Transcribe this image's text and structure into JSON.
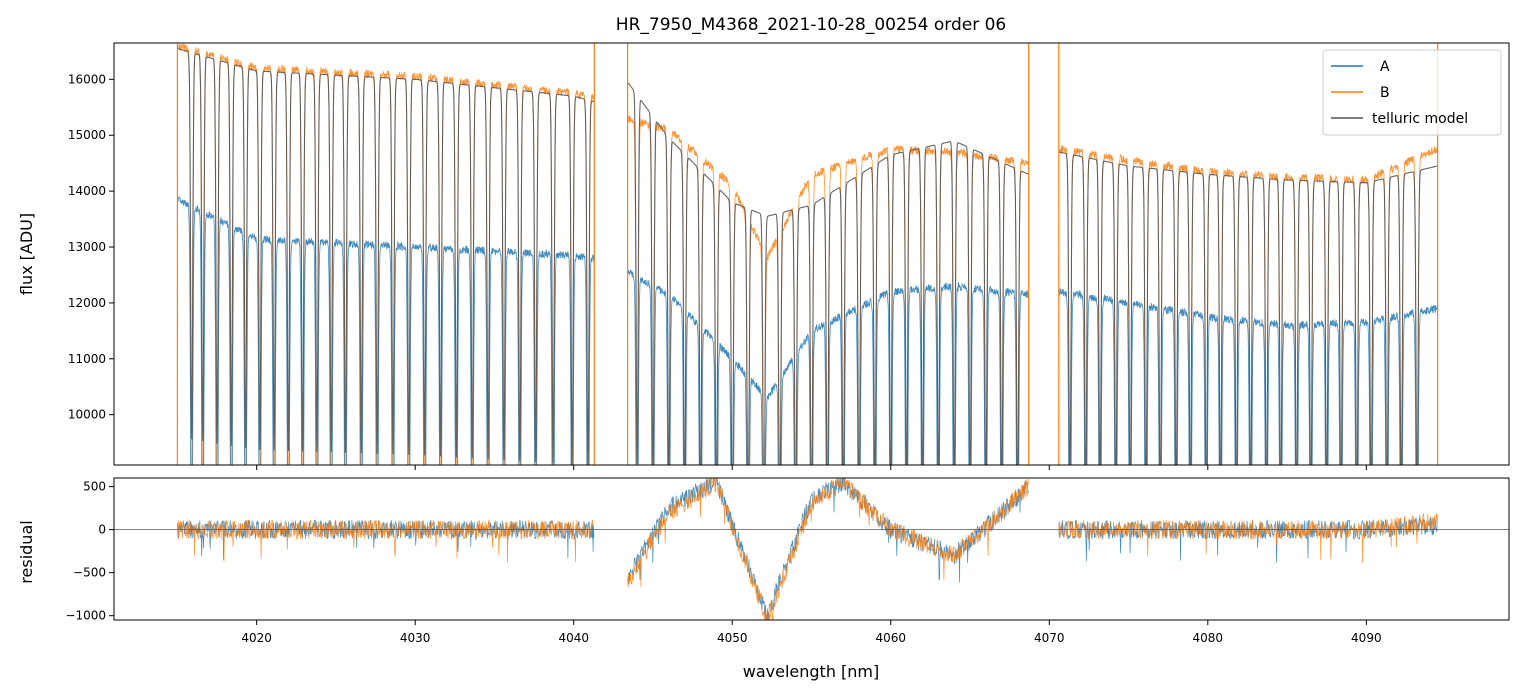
{
  "chart_data": [
    {
      "type": "line",
      "title": "HR_7950_M4368_2021-10-28_00254  order 06",
      "xlabel": "",
      "ylabel": "flux [ADU]",
      "xlim": [
        4011,
        4099
      ],
      "ylim": [
        9100,
        16650
      ],
      "x_ticks": [
        4020,
        4030,
        4040,
        4050,
        4060,
        4070,
        4080,
        4090
      ],
      "y_ticks": [
        10000,
        11000,
        12000,
        13000,
        14000,
        15000,
        16000
      ],
      "legend": "top-right",
      "x_segments": [
        [
          4015.0,
          4041.3
        ],
        [
          4043.4,
          4068.7
        ],
        [
          4070.6,
          4094.5
        ]
      ],
      "series": [
        {
          "name": "A",
          "color": "#1f77b4",
          "x": [
            4015.0,
            4020,
            4030,
            4040,
            4041.3,
            4043.4,
            4046,
            4050,
            4052.2,
            4055,
            4060,
            4064,
            4068.7,
            4070.6,
            4075,
            4080,
            4085,
            4090,
            4094.5
          ],
          "y": [
            13850,
            13150,
            13000,
            12850,
            12800,
            12550,
            12150,
            11000,
            10300,
            11500,
            12200,
            12300,
            12150,
            12200,
            12000,
            11750,
            11600,
            11650,
            11900
          ]
        },
        {
          "name": "B",
          "color": "#ff7f0e",
          "x": [
            4015.0,
            4020,
            4030,
            4040,
            4041.3,
            4043.4,
            4046,
            4050,
            4052.2,
            4055,
            4060,
            4064,
            4068.7,
            4070.6,
            4075,
            4080,
            4085,
            4090,
            4094.5
          ],
          "y": [
            16600,
            16200,
            16050,
            15750,
            15650,
            15300,
            15100,
            14100,
            12800,
            14300,
            14750,
            14700,
            14500,
            14750,
            14550,
            14350,
            14250,
            14200,
            14750
          ]
        },
        {
          "name": "telluric model",
          "color": "#555555",
          "x": [
            4015.0,
            4020,
            4030,
            4040,
            4041.3,
            4043.4,
            4046,
            4050,
            4052.2,
            4055,
            4060,
            4064,
            4068.7,
            4070.6,
            4075,
            4080,
            4085,
            4090,
            4094.5
          ],
          "y": [
            16550,
            16150,
            16000,
            15700,
            15600,
            15950,
            14950,
            13800,
            13550,
            13750,
            14650,
            14900,
            14300,
            14700,
            14450,
            14300,
            14200,
            14150,
            14450
          ]
        }
      ],
      "telluric_lines": [
        4015.9,
        4016.6,
        4017.5,
        4018.4,
        4019.3,
        4020.2,
        4021.1,
        4022.0,
        4022.9,
        4023.8,
        4024.7,
        4025.6,
        4026.6,
        4027.6,
        4028.6,
        4029.6,
        4030.6,
        4031.6,
        4032.6,
        4033.6,
        4034.6,
        4035.6,
        4036.6,
        4037.6,
        4038.7,
        4039.9,
        4040.9,
        4044.0,
        4045.0,
        4046.0,
        4047.0,
        4048.0,
        4049.0,
        4050.0,
        4051.0,
        4052.0,
        4053.0,
        4054.0,
        4055.0,
        4056.0,
        4057.0,
        4058.0,
        4059.0,
        4060.0,
        4061.0,
        4062.0,
        4063.0,
        4064.0,
        4065.0,
        4066.0,
        4067.0,
        4068.0,
        4071.3,
        4072.3,
        4073.2,
        4074.2,
        4075.1,
        4076.1,
        4077.0,
        4078.0,
        4078.9,
        4079.9,
        4080.8,
        4081.8,
        4082.7,
        4083.7,
        4084.6,
        4085.6,
        4086.5,
        4087.5,
        4088.4,
        4089.4,
        4090.3,
        4091.3,
        4092.2,
        4093.2
      ],
      "vertical_lines": [
        4015.0,
        4041.3,
        4043.4,
        4068.7,
        4070.6,
        4094.5
      ]
    },
    {
      "type": "line",
      "title": "",
      "xlabel": "wavelength [nm]",
      "ylabel": "residual",
      "xlim": [
        4011,
        4099
      ],
      "ylim": [
        -1050,
        600
      ],
      "x_ticks": [
        4020,
        4030,
        4040,
        4050,
        4060,
        4070,
        4080,
        4090
      ],
      "y_ticks": [
        -1000,
        -500,
        0,
        500
      ],
      "zero_line": true,
      "series": [
        {
          "name": "A",
          "color": "#1f77b4",
          "x": [
            4015.0,
            4020,
            4030,
            4040,
            4041.3,
            4043.4,
            4046,
            4049,
            4052.2,
            4055,
            4057,
            4060,
            4064,
            4067,
            4068.7,
            4070.6,
            4075,
            4080,
            4085,
            4090,
            4094.5
          ],
          "y": [
            0,
            0,
            0,
            0,
            0,
            -550,
            250,
            550,
            -1000,
            350,
            550,
            0,
            -300,
            200,
            500,
            0,
            0,
            0,
            0,
            0,
            50
          ]
        },
        {
          "name": "B",
          "color": "#ff7f0e",
          "x": [
            4015.0,
            4020,
            4030,
            4040,
            4041.3,
            4043.4,
            4046,
            4049,
            4052.2,
            4055,
            4057,
            4060,
            4064,
            4067,
            4068.7,
            4070.6,
            4075,
            4080,
            4085,
            4090,
            4094.5
          ],
          "y": [
            0,
            0,
            0,
            0,
            0,
            -600,
            200,
            550,
            -1050,
            300,
            550,
            0,
            -300,
            200,
            500,
            0,
            0,
            0,
            0,
            0,
            100
          ]
        }
      ]
    }
  ]
}
